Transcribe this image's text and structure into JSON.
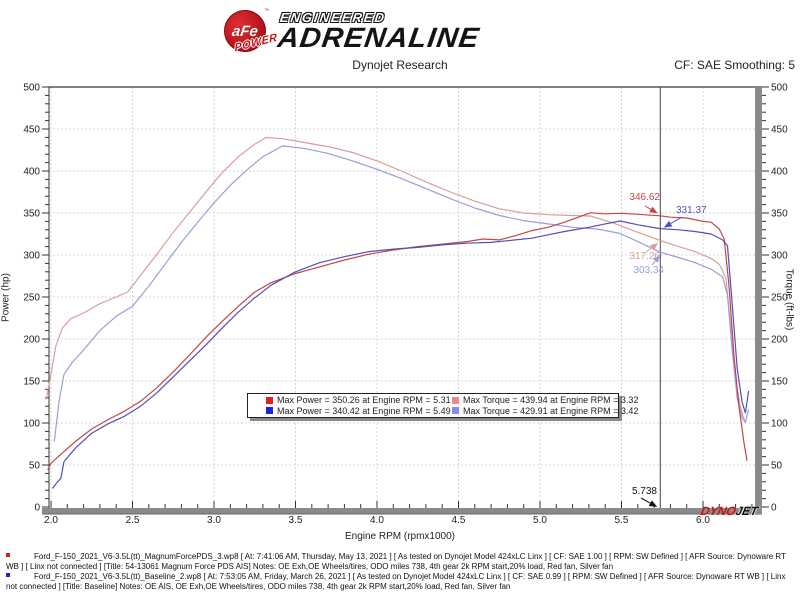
{
  "header": {
    "brand": {
      "circle_text": "aFe",
      "trademark": "™",
      "power": "POWER",
      "engineered": "ENGINEERED",
      "adrenaline": "ADRENALINE"
    },
    "title": "Dynojet Research",
    "cf_note": "CF: SAE Smoothing: 5"
  },
  "watermark": {
    "dyno": "DYNO",
    "jet": "JET",
    "dyno_color": "#cc1111",
    "jet_color": "#0a0a0a"
  },
  "chart_data": {
    "type": "line",
    "title": "Dynojet Research",
    "xlabel": "Engine RPM (rpmx1000)",
    "ylabel_left": "Power (hp)",
    "ylabel_right": "Torque (ft-lbs)",
    "xlim": [
      2.0,
      6.35
    ],
    "ylim_left": [
      0,
      500
    ],
    "ylim_right": [
      0,
      500
    ],
    "grid": "dashed",
    "x_ticks": [
      "2.0",
      "2.5",
      "3.0",
      "3.5",
      "4.0",
      "4.5",
      "5.0",
      "5.5",
      "6.0"
    ],
    "x_tick_values": [
      2.0,
      2.5,
      3.0,
      3.5,
      4.0,
      4.5,
      5.0,
      5.5,
      6.0
    ],
    "y_ticks": [
      0,
      50,
      100,
      150,
      200,
      250,
      300,
      350,
      400,
      450,
      500
    ],
    "cursor_rpm": 5.738,
    "cursor_label": "5.738",
    "series": [
      {
        "name": "Max Power (Magnum Force PDS)",
        "legend": "Max Power = 350.26 at Engine RPM = 5.31",
        "max_value": 350.26,
        "max_rpm": 5.31,
        "cursor_value": 346.62,
        "cursor_text": "346.62",
        "color": "#c04848",
        "legend_color": "#e32020",
        "axis": "hp",
        "points": [
          [
            1.98,
            44
          ],
          [
            2.0,
            52
          ],
          [
            2.05,
            61
          ],
          [
            2.08,
            66
          ],
          [
            2.15,
            78
          ],
          [
            2.25,
            93
          ],
          [
            2.35,
            104
          ],
          [
            2.45,
            114
          ],
          [
            2.55,
            126
          ],
          [
            2.65,
            142
          ],
          [
            2.75,
            161
          ],
          [
            2.85,
            181
          ],
          [
            2.95,
            202
          ],
          [
            3.05,
            221
          ],
          [
            3.15,
            239
          ],
          [
            3.25,
            256
          ],
          [
            3.35,
            267
          ],
          [
            3.5,
            278
          ],
          [
            3.65,
            286
          ],
          [
            3.8,
            294
          ],
          [
            3.95,
            301
          ],
          [
            4.1,
            306
          ],
          [
            4.25,
            310
          ],
          [
            4.4,
            313
          ],
          [
            4.55,
            316
          ],
          [
            4.65,
            319
          ],
          [
            4.75,
            318
          ],
          [
            4.85,
            323
          ],
          [
            4.95,
            329
          ],
          [
            5.05,
            333
          ],
          [
            5.15,
            339
          ],
          [
            5.31,
            350.26
          ],
          [
            5.4,
            349
          ],
          [
            5.5,
            349.6
          ],
          [
            5.6,
            348.5
          ],
          [
            5.738,
            346.62
          ],
          [
            5.8,
            345
          ],
          [
            5.9,
            344
          ],
          [
            6.0,
            340
          ],
          [
            6.05,
            339
          ],
          [
            6.1,
            331
          ],
          [
            6.13,
            319
          ],
          [
            6.16,
            262
          ],
          [
            6.19,
            180
          ],
          [
            6.22,
            120
          ],
          [
            6.25,
            78
          ],
          [
            6.27,
            55
          ]
        ]
      },
      {
        "name": "Max Torque (Magnum Force PDS)",
        "legend": "Max Torque = 439.94 at Engine RPM = 3.32",
        "max_value": 439.94,
        "max_rpm": 3.32,
        "cursor_value": 317.26,
        "cursor_text": "317.26",
        "color": "#dc9c9c",
        "legend_color": "#ee8888",
        "axis": "ft-lbs",
        "points": [
          [
            1.97,
            128
          ],
          [
            2.0,
            158
          ],
          [
            2.03,
            192
          ],
          [
            2.07,
            213
          ],
          [
            2.12,
            224
          ],
          [
            2.2,
            231
          ],
          [
            2.3,
            242
          ],
          [
            2.4,
            250
          ],
          [
            2.47,
            256
          ],
          [
            2.55,
            276
          ],
          [
            2.65,
            301
          ],
          [
            2.75,
            327
          ],
          [
            2.85,
            351
          ],
          [
            2.95,
            375
          ],
          [
            3.05,
            398
          ],
          [
            3.15,
            417
          ],
          [
            3.25,
            432
          ],
          [
            3.32,
            439.94
          ],
          [
            3.42,
            438.5
          ],
          [
            3.55,
            434
          ],
          [
            3.7,
            429
          ],
          [
            3.85,
            422
          ],
          [
            4.0,
            412
          ],
          [
            4.15,
            400
          ],
          [
            4.3,
            387
          ],
          [
            4.45,
            375
          ],
          [
            4.6,
            364
          ],
          [
            4.75,
            355
          ],
          [
            4.9,
            350
          ],
          [
            5.05,
            348
          ],
          [
            5.2,
            347
          ],
          [
            5.31,
            346.4
          ],
          [
            5.45,
            338
          ],
          [
            5.6,
            327
          ],
          [
            5.738,
            317.26
          ],
          [
            5.85,
            310
          ],
          [
            5.95,
            304
          ],
          [
            6.05,
            296
          ],
          [
            6.1,
            289
          ],
          [
            6.14,
            273
          ],
          [
            6.17,
            215
          ],
          [
            6.2,
            152
          ],
          [
            6.23,
            118
          ],
          [
            6.26,
            100
          ]
        ]
      },
      {
        "name": "Max Power (Baseline)",
        "legend": "Max Power = 340.42 at Engine RPM = 5.49",
        "max_value": 340.42,
        "max_rpm": 5.49,
        "cursor_value": 331.37,
        "cursor_text": "331.37",
        "color": "#5050b8",
        "legend_color": "#2020e3",
        "axis": "hp",
        "points": [
          [
            2.01,
            22
          ],
          [
            2.04,
            30
          ],
          [
            2.06,
            34
          ],
          [
            2.08,
            54
          ],
          [
            2.15,
            70
          ],
          [
            2.25,
            88
          ],
          [
            2.35,
            99
          ],
          [
            2.45,
            108
          ],
          [
            2.55,
            120
          ],
          [
            2.65,
            136
          ],
          [
            2.75,
            155
          ],
          [
            2.85,
            174
          ],
          [
            2.95,
            193
          ],
          [
            3.05,
            213
          ],
          [
            3.15,
            232
          ],
          [
            3.25,
            249
          ],
          [
            3.35,
            264
          ],
          [
            3.5,
            280
          ],
          [
            3.65,
            291
          ],
          [
            3.8,
            298
          ],
          [
            3.95,
            304
          ],
          [
            4.1,
            307
          ],
          [
            4.25,
            309
          ],
          [
            4.4,
            312
          ],
          [
            4.55,
            314
          ],
          [
            4.7,
            315
          ],
          [
            4.85,
            318
          ],
          [
            4.95,
            320
          ],
          [
            5.05,
            324
          ],
          [
            5.15,
            328
          ],
          [
            5.3,
            333
          ],
          [
            5.4,
            337
          ],
          [
            5.49,
            340.42
          ],
          [
            5.6,
            336
          ],
          [
            5.738,
            331.37
          ],
          [
            5.85,
            330
          ],
          [
            5.95,
            328
          ],
          [
            6.05,
            325
          ],
          [
            6.12,
            318
          ],
          [
            6.15,
            311
          ],
          [
            6.18,
            240
          ],
          [
            6.21,
            165
          ],
          [
            6.24,
            125
          ],
          [
            6.26,
            112
          ],
          [
            6.28,
            138
          ]
        ]
      },
      {
        "name": "Max Torque (Baseline)",
        "legend": "Max Torque = 429.91 at Engine RPM = 3.42",
        "max_value": 429.91,
        "max_rpm": 3.42,
        "cursor_value": 303.34,
        "cursor_text": "303.34",
        "color": "#9c9cdc",
        "legend_color": "#8888ee",
        "axis": "ft-lbs",
        "points": [
          [
            2.02,
            78
          ],
          [
            2.05,
            126
          ],
          [
            2.08,
            158
          ],
          [
            2.13,
            172
          ],
          [
            2.2,
            187
          ],
          [
            2.3,
            210
          ],
          [
            2.4,
            227
          ],
          [
            2.5,
            239
          ],
          [
            2.6,
            263
          ],
          [
            2.7,
            289
          ],
          [
            2.8,
            315
          ],
          [
            2.9,
            339
          ],
          [
            3.0,
            362
          ],
          [
            3.1,
            383
          ],
          [
            3.2,
            401
          ],
          [
            3.3,
            417
          ],
          [
            3.42,
            429.91
          ],
          [
            3.55,
            427
          ],
          [
            3.7,
            421
          ],
          [
            3.85,
            412
          ],
          [
            4.0,
            402
          ],
          [
            4.15,
            391
          ],
          [
            4.3,
            379
          ],
          [
            4.45,
            367
          ],
          [
            4.6,
            356
          ],
          [
            4.75,
            347
          ],
          [
            4.9,
            341
          ],
          [
            5.05,
            337
          ],
          [
            5.2,
            333
          ],
          [
            5.35,
            331
          ],
          [
            5.49,
            325.7
          ],
          [
            5.6,
            316
          ],
          [
            5.738,
            303.34
          ],
          [
            5.85,
            297
          ],
          [
            5.95,
            291
          ],
          [
            6.05,
            283
          ],
          [
            6.12,
            274
          ],
          [
            6.15,
            252
          ],
          [
            6.18,
            185
          ],
          [
            6.21,
            130
          ],
          [
            6.24,
            106
          ],
          [
            6.26,
            101
          ],
          [
            6.28,
            116
          ]
        ]
      }
    ]
  },
  "footer": {
    "runs": [
      {
        "bullet_color": "#cc2222",
        "text": "Ford_F-150_2021_V6-3.5L(tt)_MagnumForcePDS_3.wp8 [ At: 7:41:06 AM, Thursday, May 13, 2021 ] [ As tested on Dynojet Model 424xLC Linx ] [ CF: SAE 1.00 ] [ RPM: SW Defined ] [ AFR Source: Dynoware RT WB ] [ Linx not connected ] [Title: 54-13061 Magnum Force PDS AIS]  Notes: OE Exh,OE Wheels/tires, ODO miles 738, 4th gear 2k RPM start,20% load, Red fan, Silver fan"
      },
      {
        "bullet_color": "#2222cc",
        "text": "Ford_F-150_2021_V6-3.5L(tt)_Baseline_2.wp8 [ At: 7:53:05 AM, Friday, March 26, 2021 ] [ As tested on Dynojet Model 424xLC Linx ] [ CF: SAE 0.99 ] [ RPM: SW Defined ] [ AFR Source: Dynoware RT WB ] [ Linx not connected ] [Title: Baseline]  Notes: OE AIS, OE Exh,OE Wheels/tires, ODO miles 738, 4th gear 2k RPM start,20% load, Red fan, Silver fan"
      }
    ]
  }
}
